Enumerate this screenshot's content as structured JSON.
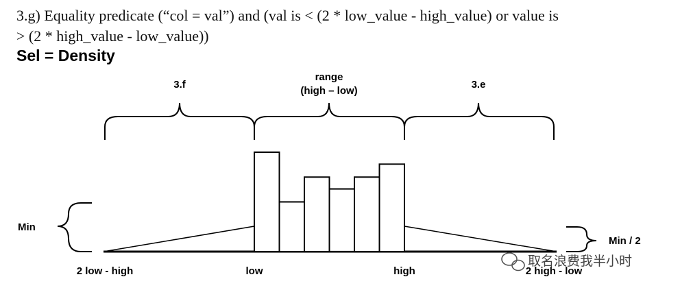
{
  "heading": {
    "line1": "3.g) Equality predicate (“col = val”) and (val is < (2 * low_value - high_value) or value is",
    "line2": "> (2 * high_value - low_value))"
  },
  "sel_label": "Sel = Density",
  "diagram": {
    "brace_labels": {
      "left": "3.f",
      "middle_line1": "range",
      "middle_line2": "(high – low)",
      "right": "3.e"
    },
    "side_labels": {
      "min": "Min",
      "min_half": "Min / 2"
    },
    "axis_labels": {
      "two_low_minus_high": "2 low - high",
      "low": "low",
      "high": "high",
      "two_high_minus_low": "2 high - low"
    },
    "histogram_relative_heights": [
      1.0,
      0.5,
      0.75,
      0.63,
      0.75,
      0.88
    ]
  },
  "watermark": {
    "text": "取名浪费我半小时",
    "icon": "wechat-icon"
  }
}
